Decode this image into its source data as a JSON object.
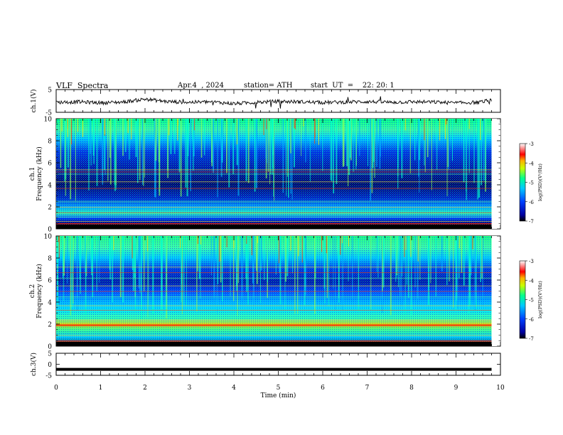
{
  "header": {
    "title": "VLF  Spectra",
    "date": "Apr.4  , 2024",
    "station": "station= ATH",
    "start": "start  UT  =    22: 20: 1"
  },
  "colors": {
    "background": "#ffffff",
    "axis": "#000000",
    "colormap": [
      "#000000",
      "#0000b0",
      "#0050ff",
      "#00c8ff",
      "#00ff80",
      "#ffff00",
      "#ff4000",
      "#ff0000",
      "#ffffff"
    ]
  },
  "chart_data": [
    {
      "type": "line",
      "ylabel": "ch.1(V)",
      "xlim": [
        0,
        10
      ],
      "ylim": [
        -5,
        5
      ],
      "ytick_labels": [
        "5",
        "-5"
      ],
      "series": [
        {
          "x": [
            0,
            0.5,
            1,
            1.5,
            2,
            2.5,
            3,
            3.5,
            4,
            4.5,
            5,
            5.5,
            6,
            6.5,
            7,
            7.5,
            8,
            8.5,
            9,
            9.5,
            9.8
          ],
          "y": [
            -0.6,
            -0.4,
            -0.8,
            -0.5,
            0.8,
            -0.3,
            -0.6,
            -0.4,
            -1.2,
            -0.6,
            -0.2,
            -0.4,
            -0.7,
            -0.5,
            -0.3,
            -0.6,
            -0.4,
            -0.5,
            -0.9,
            -0.6,
            0.4
          ]
        }
      ]
    },
    {
      "type": "heatmap",
      "ylabel": "ch.1\nFrequency (kHz)",
      "xlim": [
        0,
        10
      ],
      "ylim": [
        0,
        10
      ],
      "ytick_labels": [
        "0",
        "2",
        "4",
        "6",
        "8",
        "10"
      ],
      "colorbar": {
        "label": "log(PSD)(V²/Hz)",
        "tick_labels": [
          "-3",
          "-4",
          "-5",
          "-6",
          "-7"
        ],
        "range": [
          -7,
          -3
        ]
      }
    },
    {
      "type": "heatmap",
      "ylabel": "ch.2\nFrequency (kHz)",
      "xlim": [
        0,
        10
      ],
      "ylim": [
        0,
        10
      ],
      "ytick_labels": [
        "0",
        "2",
        "4",
        "6",
        "8",
        "10"
      ],
      "colorbar": {
        "label": "log(PSD)(V²/Hz)",
        "tick_labels": [
          "-3",
          "-4",
          "-5",
          "-6",
          "-7"
        ],
        "range": [
          -7,
          -3
        ]
      }
    },
    {
      "type": "line",
      "ylabel": "ch.3(V)",
      "xlabel": "Time  (min)",
      "xlim": [
        0,
        10
      ],
      "ylim": [
        -5,
        5
      ],
      "ytick_labels": [
        "5",
        "0",
        "-5"
      ],
      "xtick_labels": [
        "0",
        "1",
        "2",
        "3",
        "4",
        "5",
        "6",
        "7",
        "8",
        "9",
        "10"
      ],
      "series": [
        {
          "x": [
            0,
            9.8
          ],
          "y": [
            -2.3,
            -2.3
          ]
        }
      ]
    }
  ]
}
